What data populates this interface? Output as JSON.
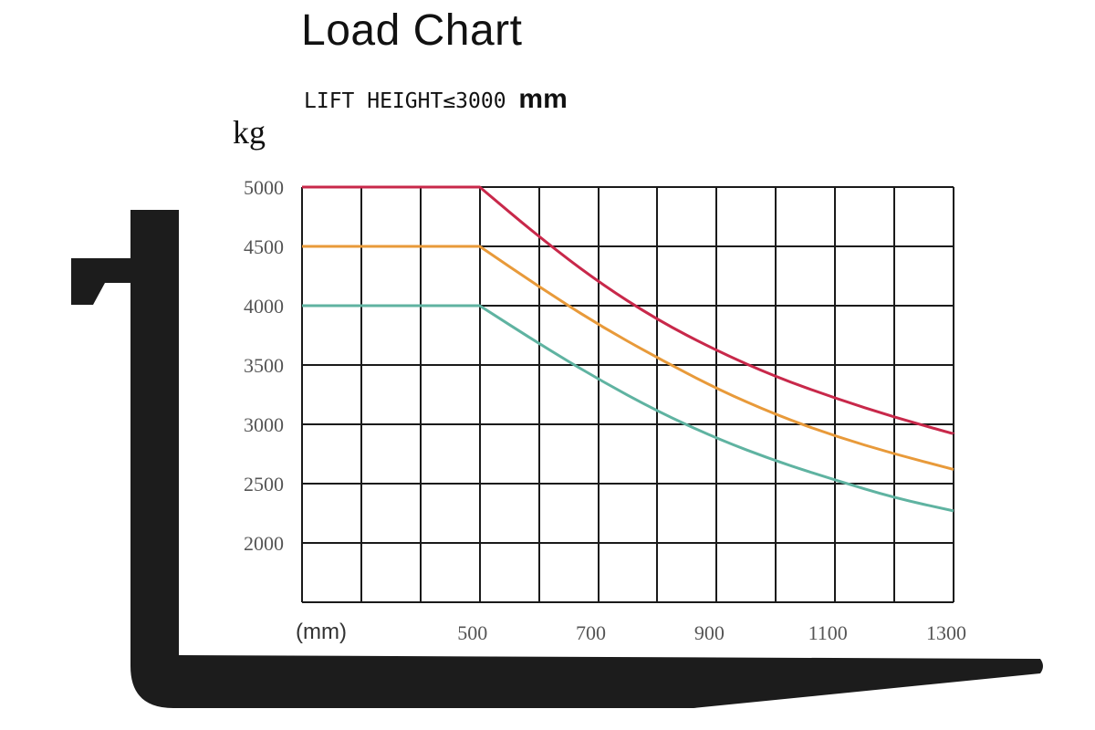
{
  "chart_data": {
    "type": "line",
    "title": "Load Chart",
    "subtitle": "LIFT HEIGHT≤3000",
    "subtitle_unit": "mm",
    "ylabel": "kg",
    "xlabel": "(mm)",
    "xlim": [
      200,
      1300
    ],
    "ylim": [
      1500,
      5000
    ],
    "x_tick_labels": [
      500,
      700,
      900,
      1100,
      1300
    ],
    "y_tick_labels": [
      5000,
      4500,
      4000,
      3500,
      3000,
      2500,
      2000
    ],
    "x_grid_step": 100,
    "y_grid_step": 500,
    "grid": true,
    "series": [
      {
        "color": "#c8284a",
        "x": [
          200,
          500,
          600,
          700,
          800,
          900,
          1000,
          1100,
          1200,
          1300
        ],
        "y": [
          5000,
          5000,
          4580,
          4200,
          3880,
          3620,
          3400,
          3220,
          3060,
          2920
        ]
      },
      {
        "color": "#e89a3a",
        "x": [
          200,
          500,
          600,
          700,
          800,
          900,
          1000,
          1100,
          1200,
          1300
        ],
        "y": [
          4500,
          4500,
          4160,
          3840,
          3560,
          3300,
          3080,
          2900,
          2750,
          2620
        ]
      },
      {
        "color": "#5fb3a1",
        "x": [
          200,
          500,
          600,
          700,
          800,
          900,
          1000,
          1100,
          1200,
          1300
        ],
        "y": [
          4000,
          4000,
          3680,
          3380,
          3110,
          2880,
          2690,
          2530,
          2380,
          2270
        ]
      }
    ]
  },
  "decor": {
    "fork_color": "#1c1c1c"
  }
}
